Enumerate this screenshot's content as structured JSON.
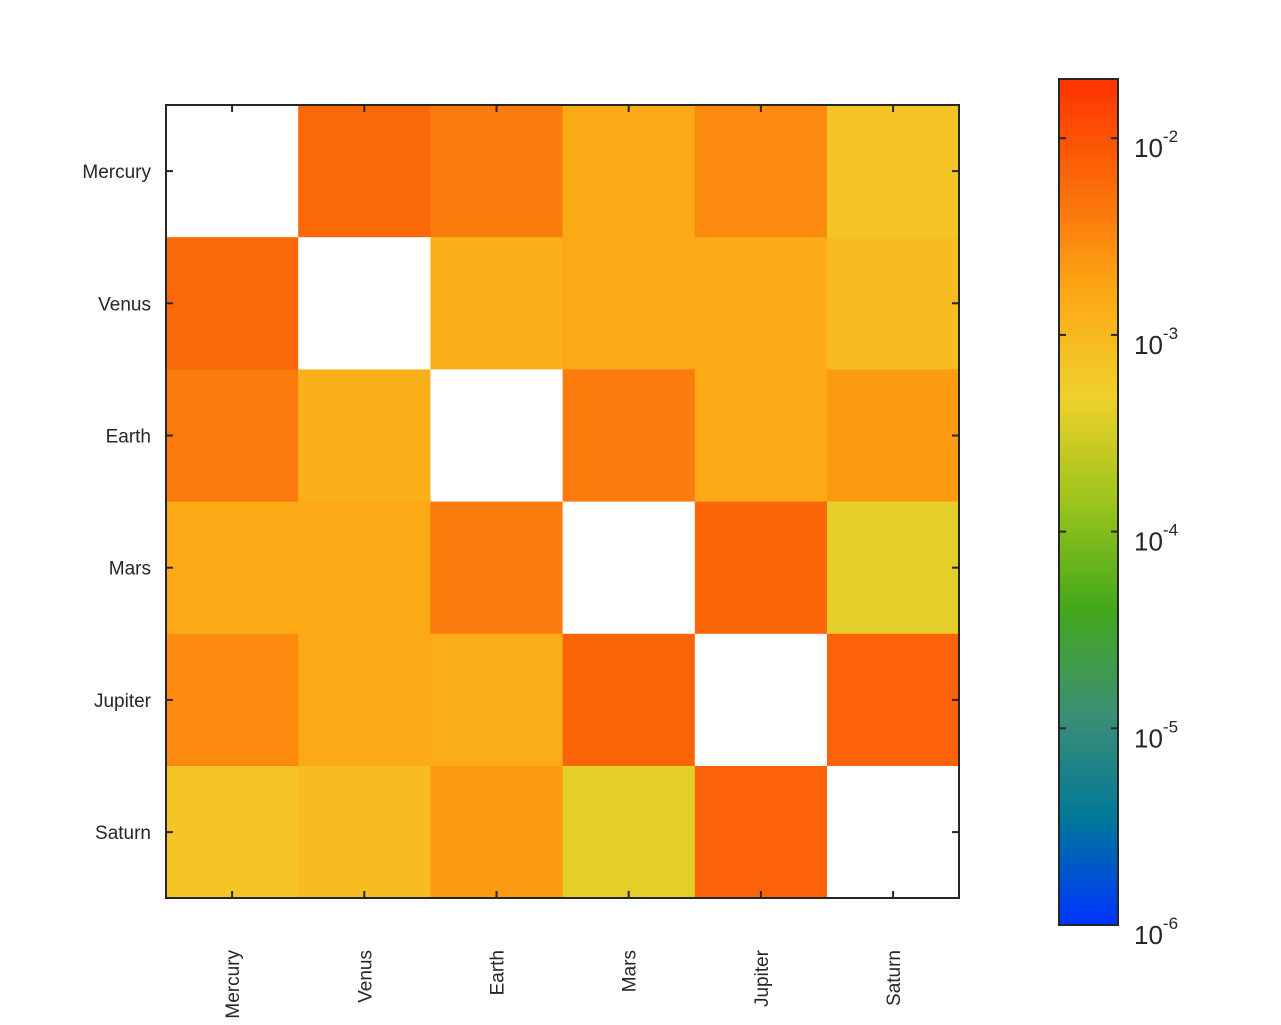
{
  "chart_data": {
    "type": "heatmap",
    "title": "",
    "xlabel": "",
    "ylabel": "",
    "rows": [
      "Mercury",
      "Venus",
      "Earth",
      "Mars",
      "Jupiter",
      "Saturn"
    ],
    "columns": [
      "Mercury",
      "Venus",
      "Earth",
      "Mars",
      "Jupiter",
      "Saturn"
    ],
    "values": [
      [
        null,
        0.006,
        0.004,
        0.0016,
        0.003,
        0.0007
      ],
      [
        0.006,
        null,
        0.0013,
        0.0016,
        0.0015,
        0.0009
      ],
      [
        0.004,
        0.0013,
        null,
        0.004,
        0.0016,
        0.0022
      ],
      [
        0.0016,
        0.0016,
        0.004,
        null,
        0.0062,
        0.0004
      ],
      [
        0.003,
        0.0016,
        0.0014,
        0.0065,
        null,
        0.007
      ],
      [
        0.0007,
        0.0009,
        0.0022,
        0.0004,
        0.007,
        null
      ]
    ],
    "diagonal": "blank",
    "colorbar": {
      "scale": "log",
      "range": [
        1e-06,
        0.02
      ],
      "tick_labels": [
        {
          "base": "10",
          "exp": "-2",
          "value": 0.01
        },
        {
          "base": "10",
          "exp": "-3",
          "value": 0.001
        },
        {
          "base": "10",
          "exp": "-4",
          "value": 0.0001
        },
        {
          "base": "10",
          "exp": "-5",
          "value": 1e-05
        },
        {
          "base": "10",
          "exp": "-6",
          "value": 1e-06
        }
      ],
      "colormap": [
        "#0033ff",
        "#00789a",
        "#3d8f73",
        "#44a81b",
        "#9cc41c",
        "#f0d12a",
        "#fca715",
        "#fb6a08",
        "#ff3300"
      ]
    },
    "grid": false,
    "legend": "colorbar-right"
  }
}
